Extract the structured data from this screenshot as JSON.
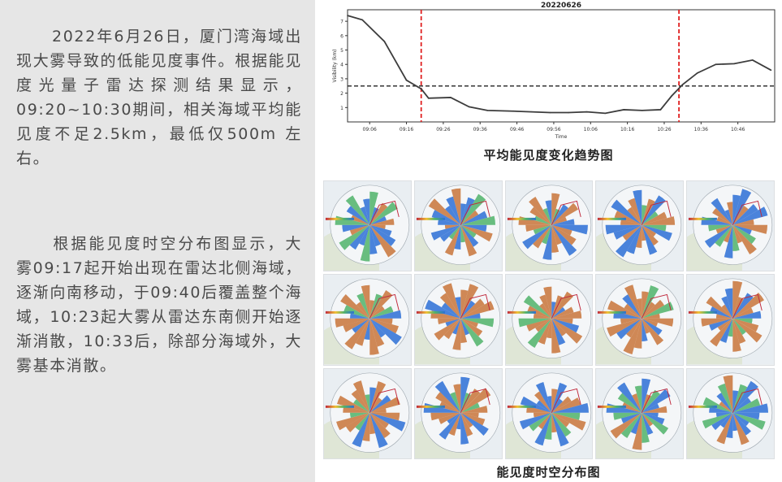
{
  "article": {
    "paragraph1": "2022年6月26日，厦门湾海域出现大雾导致的低能见度事件。根据能见度光量子雷达探测结果显示，09:20~10:30期间，相关海域平均能见度不足2.5km，最低仅500m 左右。",
    "paragraph2": "根据能见度时空分布图显示，大雾09:17起开始出现在雷达北侧海域，逐渐向南移动，于09:40后覆盖整个海域，10:23起大雾从雷达东南侧开始逐渐消散，10:33后，除部分海域外，大雾基本消散。"
  },
  "chart_data": {
    "type": "line",
    "title": "20220626",
    "xlabel": "Time",
    "ylabel": "Visibility (km)",
    "ylim": [
      0,
      7.8
    ],
    "yticks": [
      1,
      2,
      3,
      4,
      5,
      6,
      7
    ],
    "xticks": [
      "09:06",
      "09:16",
      "09:26",
      "09:36",
      "09:46",
      "09:56",
      "10:06",
      "10:16",
      "10:26",
      "10:36",
      "10:46"
    ],
    "x": [
      "09:00",
      "09:04",
      "09:10",
      "09:16",
      "09:20",
      "09:22",
      "09:28",
      "09:33",
      "09:38",
      "09:45",
      "09:50",
      "09:55",
      "10:00",
      "10:05",
      "10:10",
      "10:15",
      "10:20",
      "10:25",
      "10:28",
      "10:31",
      "10:35",
      "10:40",
      "10:45",
      "10:50",
      "10:55"
    ],
    "series": [
      {
        "values": [
          7.4,
          7.1,
          5.6,
          2.9,
          2.3,
          1.65,
          1.7,
          1.05,
          0.8,
          0.75,
          0.7,
          0.65,
          0.65,
          0.7,
          0.6,
          0.85,
          0.8,
          0.85,
          1.8,
          2.6,
          3.4,
          4.0,
          4.05,
          4.3,
          3.6
        ],
        "color": "#3c3c3c"
      }
    ],
    "threshold_line": {
      "value": 2.5,
      "style": "dashed",
      "color": "#222222"
    },
    "time_markers": [
      {
        "x": "09:20",
        "color": "#e02020",
        "style": "dashed"
      },
      {
        "x": "10:30",
        "color": "#e02020",
        "style": "dashed"
      }
    ]
  },
  "captions": {
    "chart": "平均能见度变化趋势图",
    "maps": "能见度时空分布图"
  },
  "maps": {
    "count": 15,
    "fog_color": "#c8743a",
    "clear_color": "#2b6fd6",
    "mid_color": "#4fb36a"
  }
}
